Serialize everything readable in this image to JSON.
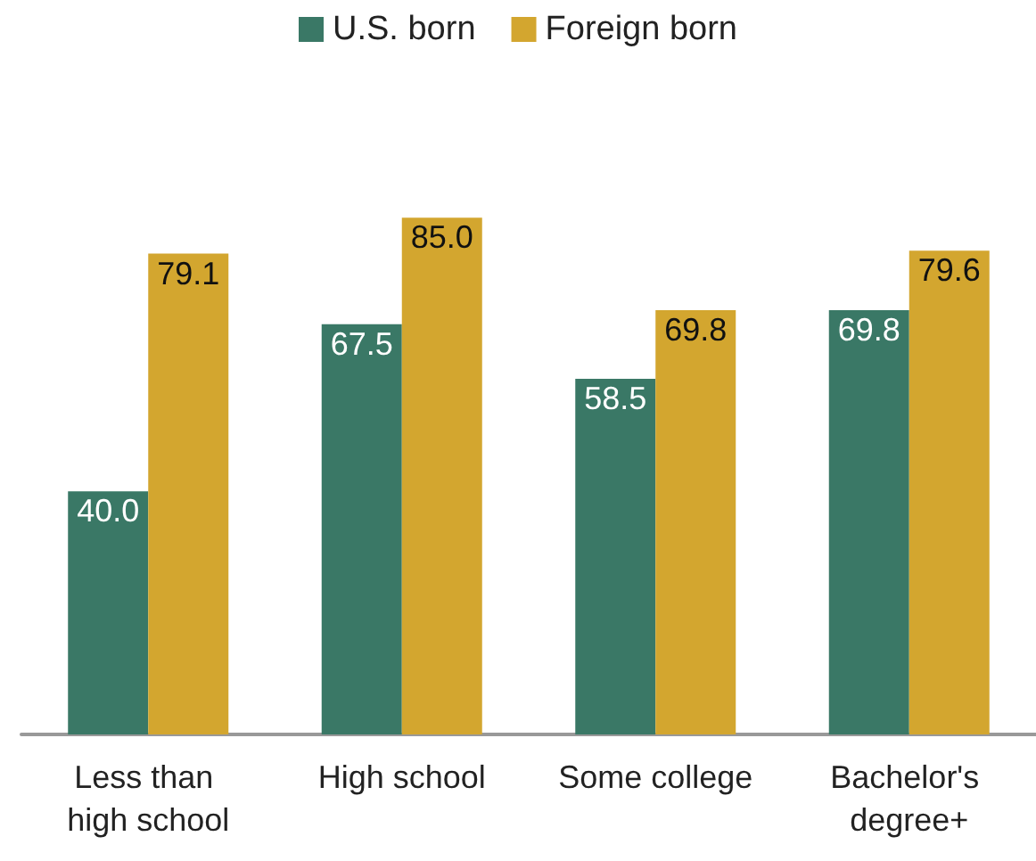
{
  "chart_data": {
    "type": "bar",
    "categories": [
      "Less than high school",
      "High school",
      "Some college",
      "Bachelor's degree+"
    ],
    "series": [
      {
        "name": "U.S. born",
        "color": "#3a7866",
        "values": [
          40.0,
          67.5,
          58.5,
          69.8
        ],
        "value_labels": [
          "40.0",
          "67.5",
          "58.5",
          "69.8"
        ]
      },
      {
        "name": "Foreign born",
        "color": "#d3a62f",
        "values": [
          79.1,
          85.0,
          69.8,
          79.6
        ],
        "value_labels": [
          "79.1",
          "85.0",
          "69.8",
          "79.6"
        ]
      }
    ],
    "legend": "top"
  }
}
